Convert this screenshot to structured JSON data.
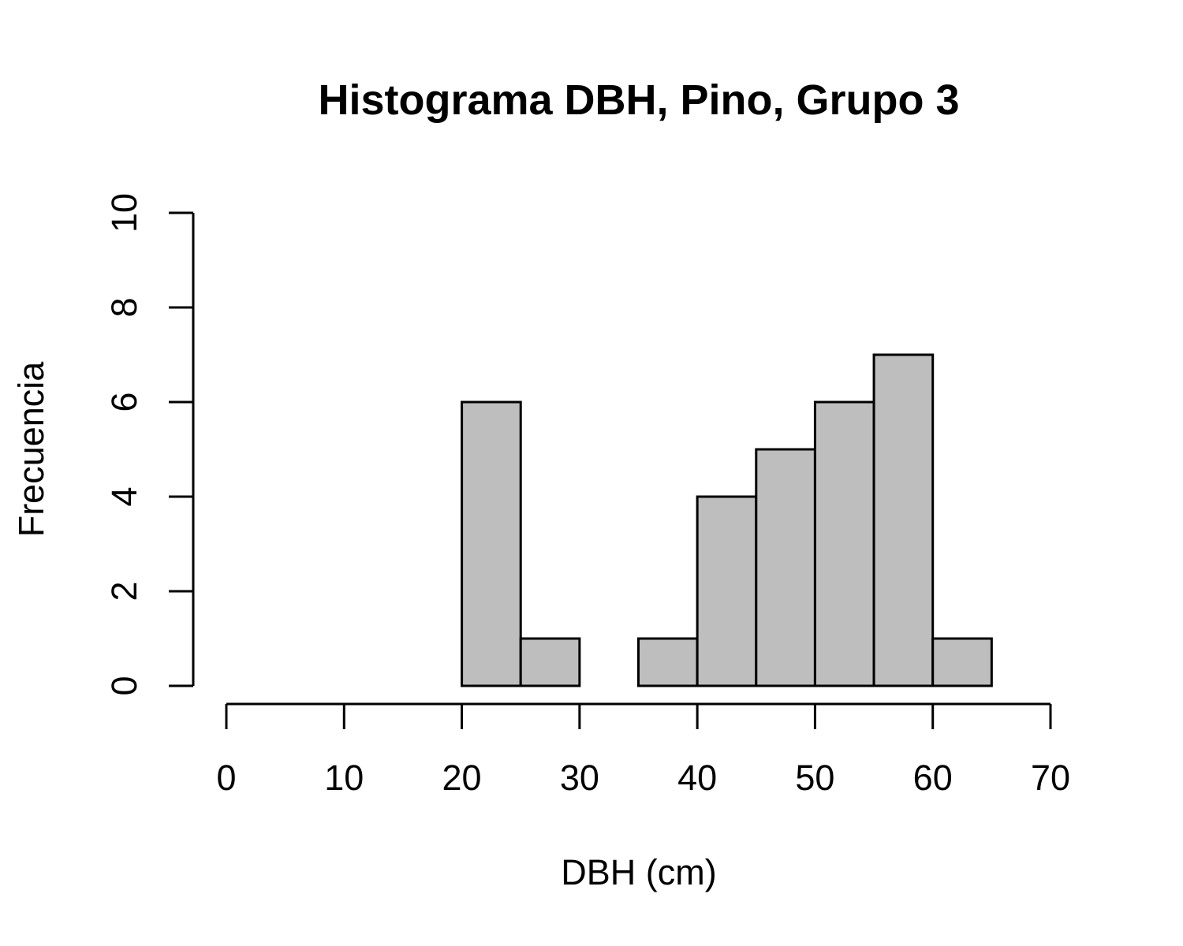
{
  "chart_data": {
    "type": "bar",
    "title": "Histograma DBH, Pino, Grupo 3",
    "xlabel": "DBH (cm)",
    "ylabel": "Frecuencia",
    "xlim": [
      0,
      70
    ],
    "ylim": [
      0,
      10
    ],
    "x_ticks": [
      "0",
      "10",
      "20",
      "30",
      "40",
      "50",
      "60",
      "70"
    ],
    "y_ticks": [
      "0",
      "2",
      "4",
      "6",
      "8",
      "10"
    ],
    "bins": [
      {
        "from": 20,
        "to": 25,
        "count": 6
      },
      {
        "from": 25,
        "to": 30,
        "count": 1
      },
      {
        "from": 30,
        "to": 35,
        "count": 0
      },
      {
        "from": 35,
        "to": 40,
        "count": 1
      },
      {
        "from": 40,
        "to": 45,
        "count": 4
      },
      {
        "from": 45,
        "to": 50,
        "count": 5
      },
      {
        "from": 50,
        "to": 55,
        "count": 6
      },
      {
        "from": 55,
        "to": 60,
        "count": 7
      },
      {
        "from": 60,
        "to": 65,
        "count": 1
      }
    ],
    "grid": false,
    "legend": "none",
    "colors": {
      "bar_fill": "#bebebe",
      "bar_stroke": "#000000",
      "axis": "#000000"
    }
  }
}
